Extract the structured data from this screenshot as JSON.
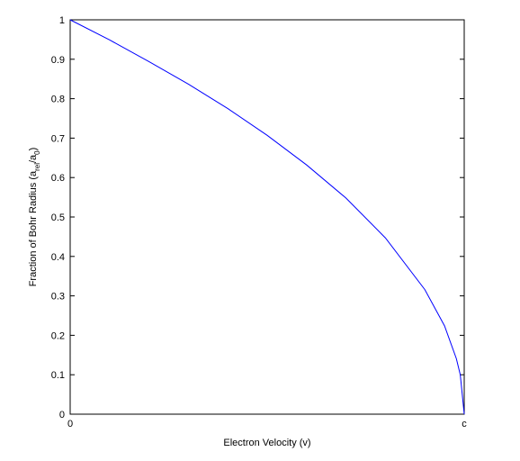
{
  "chart_data": {
    "type": "line",
    "x_label": "Electron Velocity (v)",
    "y_label_parts": [
      "Fraction of Bohr Radius (a",
      "rel",
      "/a",
      "0",
      ")"
    ],
    "x": [
      0,
      0.1,
      0.2,
      0.3,
      0.4,
      0.5,
      0.6,
      0.7,
      0.8,
      0.9,
      0.95,
      0.98,
      0.99,
      1
    ],
    "series": [
      {
        "color": "#0000ff",
        "values": [
          1,
          0.949,
          0.894,
          0.837,
          0.775,
          0.707,
          0.632,
          0.548,
          0.447,
          0.316,
          0.224,
          0.141,
          0.1,
          0
        ]
      }
    ],
    "xlim": [
      0,
      1
    ],
    "xticks": [
      0,
      {
        "value": 1,
        "label": "c"
      }
    ],
    "ylim": [
      0,
      1
    ],
    "yticks": [
      0,
      0.1,
      0.2,
      0.3,
      0.4,
      0.5,
      0.6,
      0.7,
      0.8,
      0.9,
      1
    ],
    "grid": false
  }
}
